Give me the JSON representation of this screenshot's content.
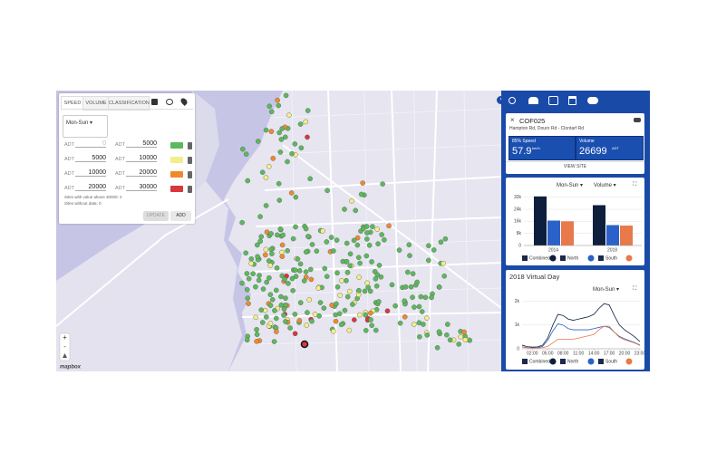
{
  "tabs": [
    "SPEED",
    "VOLUME",
    "CLASSIFICATION"
  ],
  "legend_panel": {
    "period": "Mon-Sun",
    "rows": [
      {
        "min_label": "ADT",
        "min": 0,
        "max_label": "ADT",
        "max": 5000,
        "color": "#5cb85c"
      },
      {
        "min_label": "ADT",
        "min": 5000,
        "max_label": "ADT",
        "max": 10000,
        "color": "#f3ee8a"
      },
      {
        "min_label": "ADT",
        "min": 10000,
        "max_label": "ADT",
        "max": 20000,
        "color": "#ee8a2c"
      },
      {
        "min_label": "ADT",
        "min": 20000,
        "max_label": "ADT",
        "max": 30000,
        "color": "#d9363e"
      }
    ],
    "notes": [
      "Sites with value above 30000: 2",
      "Sites without data: 0"
    ],
    "buttons": [
      "UPDATE",
      "ADD"
    ]
  },
  "zoom": [
    "+",
    "-"
  ],
  "attribution": "mapbox",
  "site": {
    "id": "COF025",
    "address": "Hampton Rd, Douro Rd - Clontarf Rd",
    "speed_label": "85% Speed",
    "speed": 57.9,
    "speed_unit": "km/h",
    "volume_label": "Volume",
    "volume": 26699,
    "volume_unit": "ADT",
    "button": "VIEW SITE"
  },
  "volume_chart_controls": [
    "Mon-Sun",
    "Volume"
  ],
  "chart_data": [
    {
      "type": "bar",
      "categories": [
        "2014",
        "2018"
      ],
      "series": [
        {
          "name": "Combined",
          "color": "#0d1f3c",
          "values": [
            32500,
            26699
          ]
        },
        {
          "name": "North",
          "color": "#2a62c9",
          "values": [
            16500,
            13500
          ]
        },
        {
          "name": "South",
          "color": "#e8794a",
          "values": [
            16000,
            13200
          ]
        }
      ],
      "ylim": [
        0,
        33000
      ],
      "yticks": [
        0,
        {
          "value": 8000,
          "label": "8k"
        },
        {
          "value": 16000,
          "label": "16k"
        },
        {
          "value": 24000,
          "label": "24k"
        },
        {
          "value": 32000,
          "label": "32k"
        }
      ],
      "grid": true
    },
    {
      "type": "line",
      "title": "2018 Virtual Day",
      "period": "Mon-Sun",
      "x": [
        0,
        1,
        2,
        3,
        4,
        5,
        6,
        7,
        8,
        9,
        10,
        11,
        12,
        13,
        14,
        15,
        16,
        17,
        18,
        19,
        20,
        21,
        22,
        23
      ],
      "series": [
        {
          "name": "Combined",
          "color": "#0d1f3c",
          "values": [
            150,
            90,
            70,
            80,
            150,
            450,
            1000,
            1450,
            1400,
            1250,
            1200,
            1250,
            1300,
            1350,
            1450,
            1700,
            1900,
            1850,
            1400,
            1000,
            800,
            650,
            500,
            300
          ]
        },
        {
          "name": "North",
          "color": "#2a62c9",
          "values": [
            80,
            50,
            40,
            50,
            100,
            350,
            750,
            1050,
            1000,
            850,
            800,
            800,
            800,
            800,
            850,
            900,
            950,
            900,
            700,
            520,
            420,
            340,
            260,
            160
          ]
        },
        {
          "name": "South",
          "color": "#e8794a",
          "values": [
            70,
            40,
            30,
            30,
            50,
            100,
            250,
            400,
            400,
            400,
            400,
            450,
            500,
            550,
            600,
            800,
            950,
            950,
            700,
            480,
            380,
            310,
            240,
            140
          ]
        }
      ],
      "xlim": [
        0,
        23
      ],
      "xticks": [
        {
          "value": 2,
          "label": "02:00"
        },
        {
          "value": 5,
          "label": "05:00"
        },
        {
          "value": 8,
          "label": "08:00"
        },
        {
          "value": 11,
          "label": "11:00"
        },
        {
          "value": 14,
          "label": "14:00"
        },
        {
          "value": 17,
          "label": "17:00"
        },
        {
          "value": 20,
          "label": "20:00"
        },
        {
          "value": 23,
          "label": "23:00"
        }
      ],
      "ylim": [
        0,
        2100
      ],
      "yticks": [
        0,
        {
          "value": 1000,
          "label": "1k"
        },
        {
          "value": 2000,
          "label": "2k"
        }
      ],
      "grid": true
    }
  ]
}
